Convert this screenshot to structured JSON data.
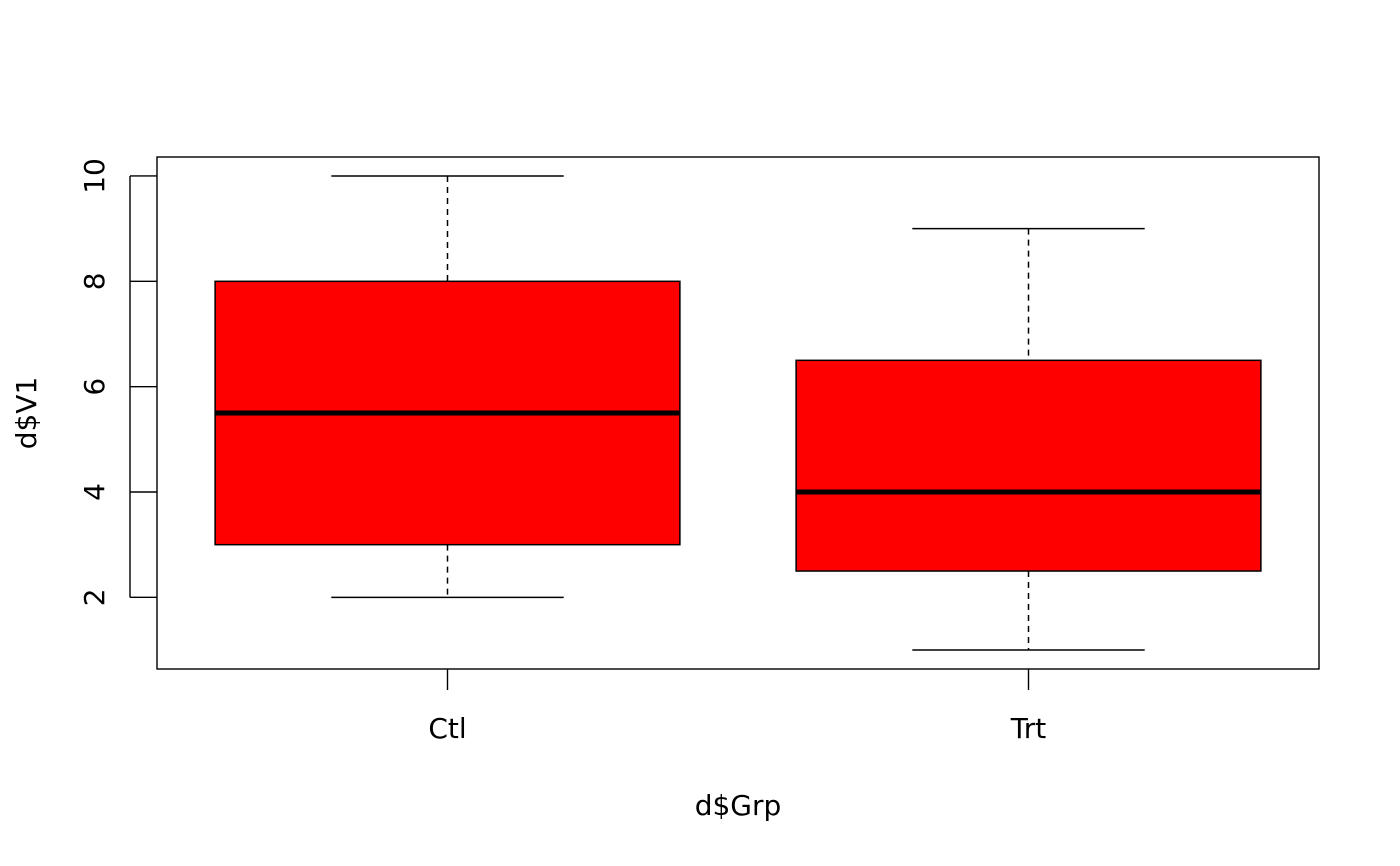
{
  "chart_data": {
    "type": "boxplot",
    "xlabel": "d$Grp",
    "ylabel": "d$V1",
    "categories": [
      "Ctl",
      "Trt"
    ],
    "boxes": [
      {
        "category": "Ctl",
        "min": 2,
        "q1": 3,
        "median": 5.5,
        "q3": 8,
        "max": 10
      },
      {
        "category": "Trt",
        "min": 1,
        "q1": 2.5,
        "median": 4,
        "q3": 6.5,
        "max": 9
      }
    ],
    "yticks": [
      2,
      4,
      6,
      8,
      10
    ],
    "ylim": [
      0.64,
      10.36
    ],
    "box_color": "#ff0000",
    "whisker_style": "dashed",
    "grid": false
  }
}
